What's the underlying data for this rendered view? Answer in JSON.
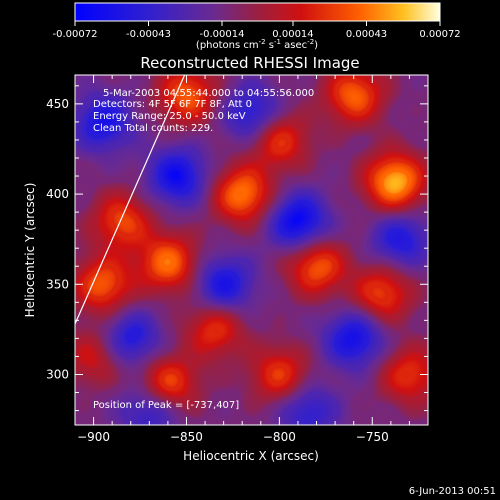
{
  "chart_data": {
    "type": "heatmap",
    "title": "Reconstructed RHESSI Image",
    "xlabel": "Heliocentric X (arcsec)",
    "ylabel": "Heliocentric Y (arcsec)",
    "xlim": [
      -910,
      -720
    ],
    "ylim": [
      272,
      466
    ],
    "x_ticks": [
      -900,
      -850,
      -800,
      -750
    ],
    "y_ticks": [
      300,
      350,
      400,
      450
    ],
    "colorbar": {
      "range": [
        -0.00072,
        0.00072
      ],
      "tick_values": [
        -0.00072,
        -0.00043,
        -0.00014,
        0.00014,
        0.00043,
        0.00072
      ],
      "tick_labels": [
        "-0.00072",
        "-0.00043",
        "-0.00014",
        "0.00014",
        "0.00043",
        "0.00072"
      ],
      "unit_prefix": "(photons cm",
      "unit_exp1": "-2",
      "unit_mid": " s",
      "unit_exp2": "-1",
      "unit_mid2": " asec",
      "unit_exp3": "-2",
      "unit_suffix": ")"
    },
    "annotations": {
      "time_range": "5-Mar-2003 04:55:44.000 to 04:55:56.000",
      "detectors": "Detectors: 4F 5F 6F 7F 8F, Att 0",
      "energy": "Energy Range: 25.0 - 50.0 keV",
      "clean": "Clean    Total counts: 229.",
      "peak": "Position of Peak = [-737,407]"
    },
    "limb_line": {
      "x": [
        -910,
        -851
      ],
      "y": [
        328,
        466
      ]
    },
    "bright_sources": [
      {
        "x": -738,
        "y": 407,
        "amp": 0.0007
      },
      {
        "x": -820,
        "y": 400,
        "amp": 0.00058
      },
      {
        "x": -860,
        "y": 362,
        "amp": 0.00055
      },
      {
        "x": -885,
        "y": 385,
        "amp": 0.00045
      },
      {
        "x": -895,
        "y": 350,
        "amp": 0.0005
      },
      {
        "x": -850,
        "y": 455,
        "amp": 0.0005
      },
      {
        "x": -800,
        "y": 430,
        "amp": 0.00042
      },
      {
        "x": -780,
        "y": 360,
        "amp": 0.0005
      },
      {
        "x": -745,
        "y": 345,
        "amp": 0.00045
      },
      {
        "x": -730,
        "y": 300,
        "amp": 0.0004
      },
      {
        "x": -800,
        "y": 300,
        "amp": 0.00042
      },
      {
        "x": -860,
        "y": 295,
        "amp": 0.00048
      },
      {
        "x": -835,
        "y": 325,
        "amp": 0.0004
      },
      {
        "x": -760,
        "y": 455,
        "amp": 0.00052
      },
      {
        "x": -900,
        "y": 310,
        "amp": 0.0003
      }
    ],
    "dark_sources": [
      {
        "x": -790,
        "y": 385,
        "amp": -0.00055
      },
      {
        "x": -855,
        "y": 410,
        "amp": -0.0005
      },
      {
        "x": -895,
        "y": 440,
        "amp": -0.00045
      },
      {
        "x": -760,
        "y": 320,
        "amp": -0.00048
      },
      {
        "x": -830,
        "y": 350,
        "amp": -0.00045
      },
      {
        "x": -880,
        "y": 320,
        "amp": -0.0004
      },
      {
        "x": -815,
        "y": 445,
        "amp": -0.0004
      },
      {
        "x": -735,
        "y": 375,
        "amp": -0.0004
      },
      {
        "x": -870,
        "y": 280,
        "amp": -0.00035
      },
      {
        "x": -785,
        "y": 280,
        "amp": -0.00035
      }
    ]
  },
  "footer": {
    "date": "6-Jun-2013 00:51"
  }
}
